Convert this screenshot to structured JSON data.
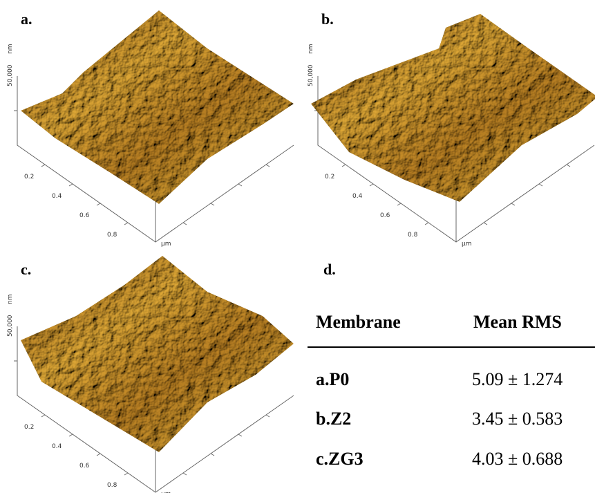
{
  "panels": [
    {
      "label": "a.",
      "z_unit": "nm",
      "z_tick": "50,000",
      "x_ticks": [
        "0.2",
        "0.4",
        "0.6",
        "0.8"
      ],
      "x_unit": "µm"
    },
    {
      "label": "b.",
      "z_unit": "nm",
      "z_tick": "50,000",
      "x_ticks": [
        "0.2",
        "0.4",
        "0.6",
        "0.8"
      ],
      "x_unit": "µm"
    },
    {
      "label": "c.",
      "z_unit": "nm",
      "z_tick": "50,000",
      "x_ticks": [
        "0.2",
        "0.4",
        "0.6",
        "0.8"
      ],
      "x_unit": "µm"
    }
  ],
  "table": {
    "label": "d.",
    "header": [
      "Membrane",
      "Mean RMS"
    ],
    "rows": [
      [
        "a.P0",
        "5.09 ± 1.274"
      ],
      [
        "b.Z2",
        "3.45 ± 0.583"
      ],
      [
        "c.ZG3",
        "4.03 ± 0.688"
      ]
    ]
  }
}
